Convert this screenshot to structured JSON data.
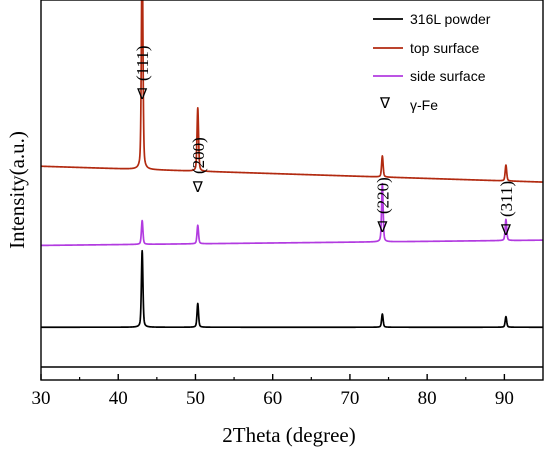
{
  "chart_data": {
    "type": "line",
    "xlabel": "2Theta (degree)",
    "ylabel": "Intensity(a.u.)",
    "xlim": [
      30,
      95
    ],
    "x_ticks": [
      "30",
      "40",
      "50",
      "60",
      "70",
      "80",
      "90"
    ],
    "legend_position": "top-right",
    "legend": [
      {
        "label": "316L powder",
        "color": "#000000",
        "symbol": "line"
      },
      {
        "label": "top surface",
        "color": "#b22a10",
        "symbol": "line"
      },
      {
        "label": "side surface",
        "color": "#b23be0",
        "symbol": "line"
      },
      {
        "label": "γ-Fe",
        "color": "#000000",
        "symbol": "∇"
      }
    ],
    "peaks": [
      {
        "label": "(111)",
        "two_theta": 43.1
      },
      {
        "label": "(200)",
        "two_theta": 50.3
      },
      {
        "label": "(220)",
        "two_theta": 74.2
      },
      {
        "label": "(311)",
        "two_theta": 90.2
      }
    ],
    "series": [
      {
        "name": "316L powder",
        "color": "#000000",
        "baseline": 1.0,
        "peaks": [
          [
            43.1,
            1.45
          ],
          [
            50.3,
            0.45
          ],
          [
            74.2,
            0.25
          ],
          [
            90.2,
            0.2
          ]
        ]
      },
      {
        "name": "top surface",
        "color": "#b22a10",
        "baseline": 4.05,
        "drift": -0.3,
        "peaks": [
          [
            43.1,
            4.3
          ],
          [
            50.3,
            1.2
          ],
          [
            74.2,
            0.4
          ],
          [
            90.2,
            0.3
          ]
        ]
      },
      {
        "name": "side surface",
        "color": "#b23be0",
        "baseline": 2.55,
        "drift": 0.1,
        "peaks": [
          [
            43.1,
            0.45
          ],
          [
            50.3,
            0.35
          ],
          [
            74.2,
            1.1
          ],
          [
            90.2,
            0.4
          ]
        ]
      }
    ]
  }
}
